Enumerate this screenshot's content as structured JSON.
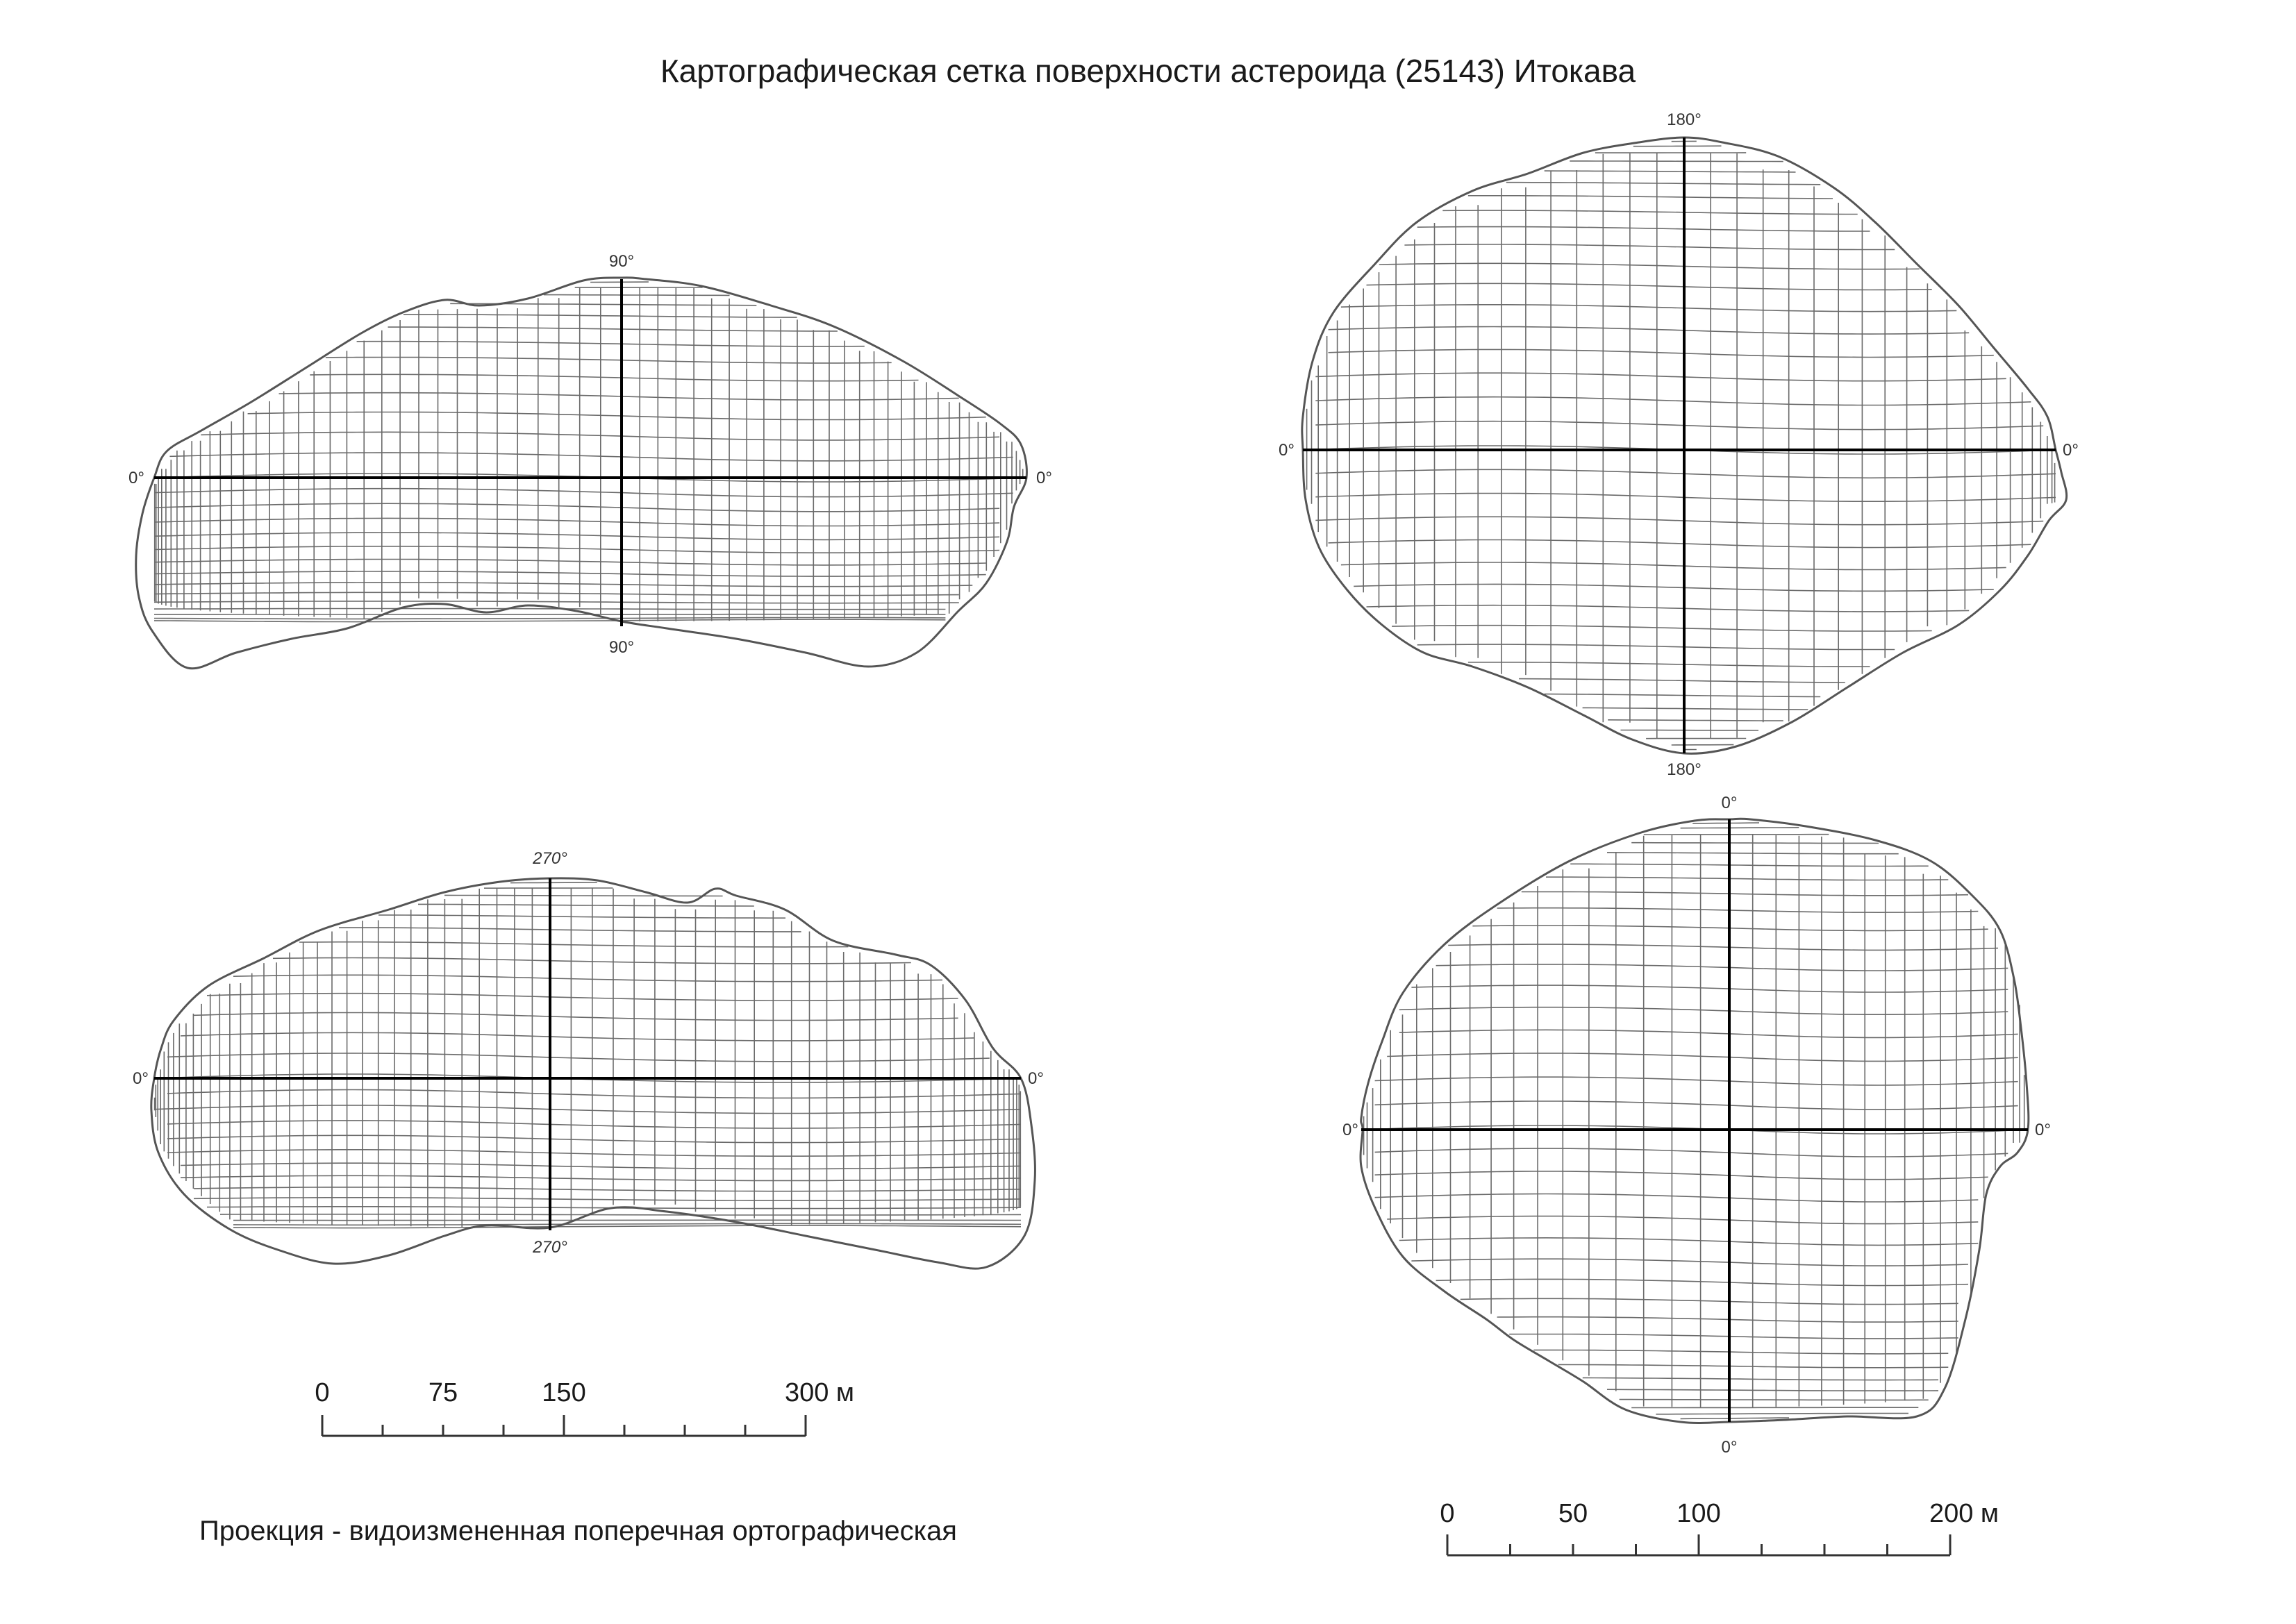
{
  "title": "Картографическая сетка поверхности астероида (25143) Итокава",
  "projection_note": "Проекция - видоизмененная поперечная ортографическая",
  "views": [
    {
      "id": "view-top-left",
      "labels": {
        "top": "90°",
        "bottom": "90°",
        "left": "0°",
        "right": "0°"
      },
      "italic_labels": false
    },
    {
      "id": "view-bottom-left",
      "labels": {
        "top": "270°",
        "bottom": "270°",
        "left": "0°",
        "right": "0°"
      },
      "italic_labels": true
    },
    {
      "id": "view-top-right",
      "labels": {
        "top": "180°",
        "bottom": "180°",
        "left": "0°",
        "right": "0°"
      },
      "italic_labels": false
    },
    {
      "id": "view-bottom-right",
      "labels": {
        "top": "0°",
        "bottom": "0°",
        "left": "0°",
        "right": "0°"
      },
      "italic_labels": false
    }
  ],
  "scale_bars": [
    {
      "id": "scale-left",
      "labels": [
        "0",
        "75",
        "150",
        "300 м"
      ],
      "values": [
        0,
        75,
        150,
        300
      ],
      "max": 300,
      "divisions": 8
    },
    {
      "id": "scale-right",
      "labels": [
        "0",
        "50",
        "100",
        "200 м"
      ],
      "values": [
        0,
        50,
        100,
        200
      ],
      "max": 200,
      "divisions": 8
    }
  ]
}
